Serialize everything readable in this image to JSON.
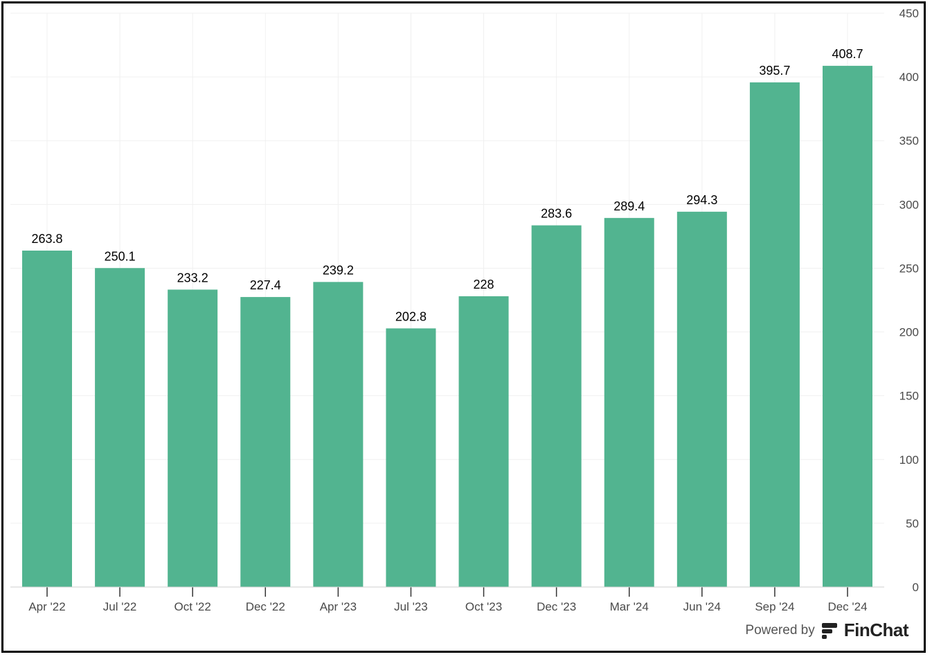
{
  "chart_data": {
    "type": "bar",
    "categories": [
      "Apr '22",
      "Jul '22",
      "Oct '22",
      "Dec '22",
      "Apr '23",
      "Jul '23",
      "Oct '23",
      "Dec '23",
      "Mar '24",
      "Jun '24",
      "Sep '24",
      "Dec '24"
    ],
    "values": [
      263.8,
      250.1,
      233.2,
      227.4,
      239.2,
      202.8,
      228,
      283.6,
      289.4,
      294.3,
      395.7,
      408.7
    ],
    "value_labels": [
      "263.8",
      "250.1",
      "233.2",
      "227.4",
      "239.2",
      "202.8",
      "228",
      "283.6",
      "289.4",
      "294.3",
      "395.7",
      "408.7"
    ],
    "ylim": [
      0,
      450
    ],
    "yticks": [
      0,
      50,
      100,
      150,
      200,
      250,
      300,
      350,
      400,
      450
    ],
    "y_axis_position": "right",
    "grid": true,
    "bar_color": "#52b490",
    "grid_color": "#f0f0f0"
  },
  "footer": {
    "powered_by": "Powered by",
    "brand": "FinChat"
  }
}
